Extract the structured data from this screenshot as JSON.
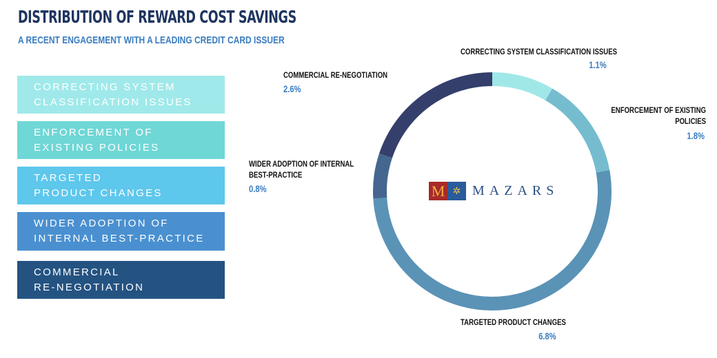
{
  "title": "DISTRIBUTION OF REWARD COST SAVINGS",
  "subtitle": "A RECENT ENGAGEMENT WITH A LEADING CREDIT CARD ISSUER",
  "legend": [
    {
      "label": "CORRECTING SYSTEM\nCLASSIFICATION ISSUES",
      "color": "#a0e9ea"
    },
    {
      "label": "ENFORCEMENT OF\nEXISTING POLICIES",
      "color": "#6fd7d6"
    },
    {
      "label": "TARGETED\nPRODUCT CHANGES",
      "color": "#5ec7ec"
    },
    {
      "label": " WIDER  ADOPTION OF\nINTERNAL BEST-PRACTICE",
      "color": "#4a90d0"
    },
    {
      "label": "COMMERCIAL\nRE-NEGOTIATION",
      "color": "#245382"
    }
  ],
  "logo": {
    "letter": "M",
    "text": "MAZARS"
  },
  "chart_data": {
    "type": "pie",
    "donut": true,
    "start": "top, clockwise",
    "slices": [
      {
        "label": "CORRECTING SYSTEM CLASSIFICATION ISSUES",
        "value": 1.1,
        "display": "1.1%",
        "color": "#a0e8e8"
      },
      {
        "label": "ENFORCEMENT OF EXISTING POLICIES",
        "value": 1.8,
        "display": "1.8%",
        "color": "#76bccf"
      },
      {
        "label": "TARGETED PRODUCT CHANGES",
        "value": 6.8,
        "display": "6.8%",
        "color": "#5a93b6"
      },
      {
        "label": "WIDER ADOPTION OF INTERNAL BEST-PRACTICE",
        "value": 0.8,
        "display": "0.8%",
        "color": "#45668f"
      },
      {
        "label": "COMMERCIAL RE-NEGOTIATION",
        "value": 2.6,
        "display": "2.6%",
        "color": "#343f6b"
      }
    ]
  }
}
